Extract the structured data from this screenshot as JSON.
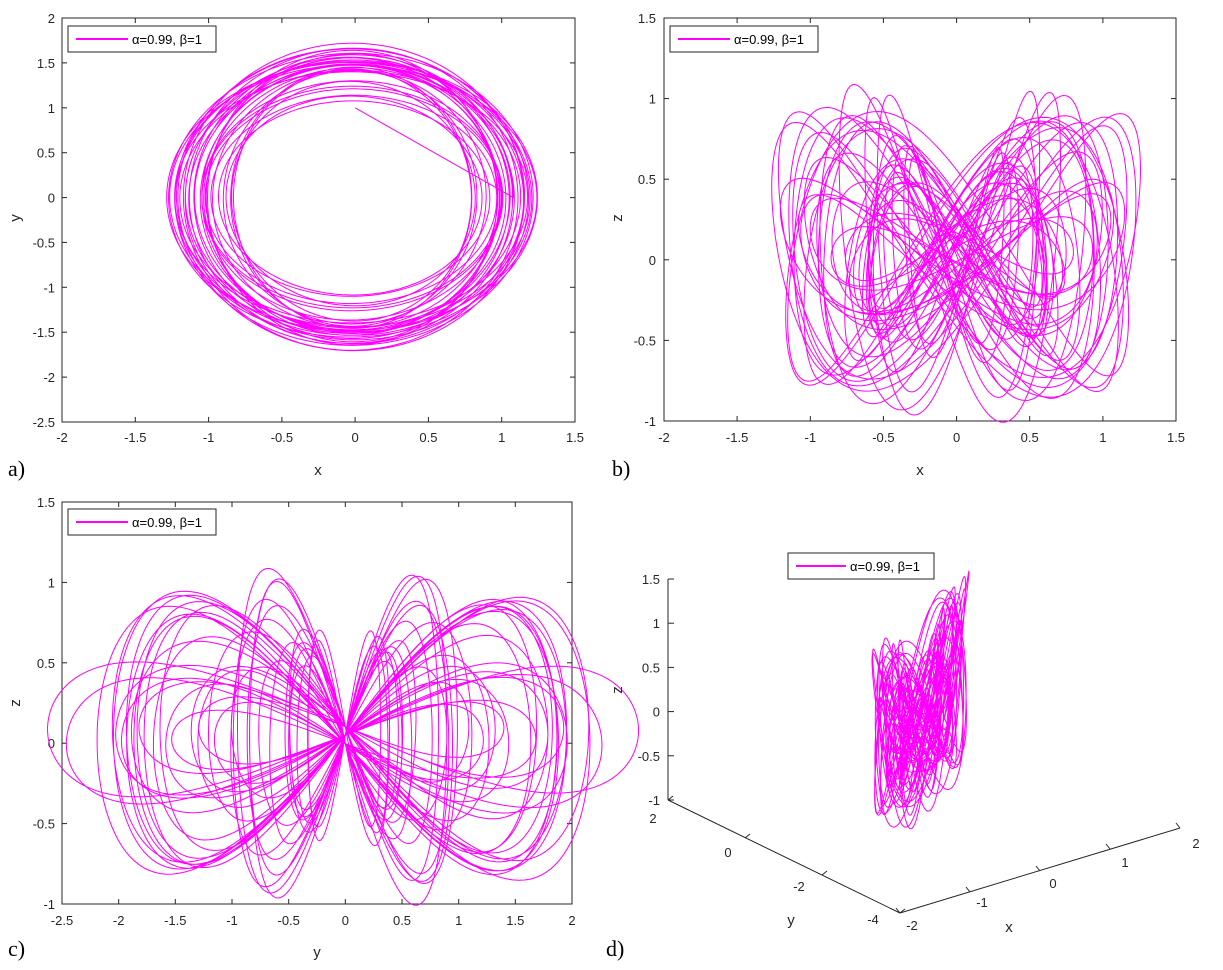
{
  "line_color": "#ff00ff",
  "legend_text": "α=0.99, β=1",
  "chart_data": [
    {
      "type": "line",
      "panel_label": "a)",
      "xlabel": "x",
      "ylabel": "y",
      "xlim": [
        -2,
        1.5
      ],
      "ylim": [
        -2.5,
        2
      ],
      "xticks": [
        "-2",
        "-1.5",
        "-1",
        "-0.5",
        "0",
        "0.5",
        "1",
        "1.5"
      ],
      "yticks": [
        "-2.5",
        "-2",
        "-1.5",
        "-1",
        "-0.5",
        "0",
        "0.5",
        "1",
        "1.5",
        "2"
      ],
      "legend_placement": "top-left",
      "series": [
        {
          "name": "α=0.99, β=1",
          "start": [
            0,
            1
          ]
        }
      ]
    },
    {
      "type": "line",
      "panel_label": "b)",
      "xlabel": "x",
      "ylabel": "z",
      "xlim": [
        -2,
        1.5
      ],
      "ylim": [
        -1,
        1.5
      ],
      "xticks": [
        "-2",
        "-1.5",
        "-1",
        "-0.5",
        "0",
        "0.5",
        "1",
        "1.5"
      ],
      "yticks": [
        "-1",
        "-0.5",
        "0",
        "0.5",
        "1",
        "1.5"
      ],
      "legend_placement": "top-left",
      "series": [
        {
          "name": "α=0.99, β=1"
        }
      ]
    },
    {
      "type": "line",
      "panel_label": "c)",
      "xlabel": "y",
      "ylabel": "z",
      "xlim": [
        -2.5,
        2
      ],
      "ylim": [
        -1,
        1.5
      ],
      "xticks": [
        "-2.5",
        "-2",
        "-1.5",
        "-1",
        "-0.5",
        "0",
        "0.5",
        "1",
        "1.5",
        "2"
      ],
      "yticks": [
        "-1",
        "-0.5",
        "0",
        "0.5",
        "1",
        "1.5"
      ],
      "legend_placement": "top-left",
      "series": [
        {
          "name": "α=0.99, β=1",
          "start": [
            1,
            0
          ]
        }
      ]
    },
    {
      "type": "line",
      "panel_label": "d)",
      "xlabel": "x",
      "ylabel": "y",
      "zlabel": "z",
      "xlim": [
        -2,
        2
      ],
      "ylim": [
        -4,
        2
      ],
      "zlim": [
        -1,
        1.5
      ],
      "xticks": [
        "-2",
        "-1",
        "0",
        "1",
        "2"
      ],
      "yticks": [
        "-4",
        "-2",
        "0",
        "2"
      ],
      "zticks": [
        "-1",
        "-0.5",
        "0",
        "0.5",
        "1",
        "1.5"
      ],
      "legend_placement": "top",
      "series": [
        {
          "name": "α=0.99, β=1"
        }
      ]
    }
  ]
}
